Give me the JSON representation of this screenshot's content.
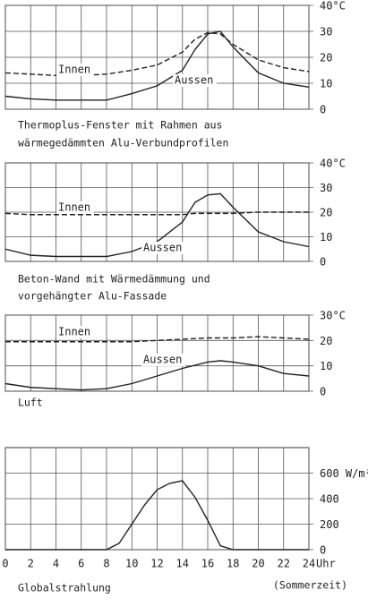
{
  "chart_data": [
    {
      "type": "line",
      "ylim": [
        0,
        40
      ],
      "yticks": [
        0,
        10,
        20,
        30,
        {
          "value": 40,
          "label": "40°C"
        }
      ],
      "x": [
        0,
        2,
        4,
        6,
        8,
        10,
        12,
        14,
        15,
        16,
        17,
        18,
        20,
        22,
        24
      ],
      "series": [
        {
          "name": "Innen",
          "color": "#222",
          "dash": true,
          "values": [
            14,
            13.5,
            13,
            13,
            13.5,
            15,
            17,
            22,
            27,
            29.5,
            29,
            25,
            19,
            16,
            14.5
          ]
        },
        {
          "name": "Aussen",
          "color": "#222",
          "dash": false,
          "values": [
            5,
            4,
            3.5,
            3.5,
            3.5,
            6,
            9,
            15,
            23,
            29,
            30,
            24,
            14,
            10,
            8.5
          ]
        }
      ],
      "caption": [
        "Thermoplus-Fenster mit Rahmen aus",
        "wärmegedämmten Alu-Verbundprofilen"
      ]
    },
    {
      "type": "line",
      "ylim": [
        0,
        40
      ],
      "yticks": [
        0,
        10,
        20,
        30,
        {
          "value": 40,
          "label": "40°C"
        }
      ],
      "x": [
        0,
        2,
        4,
        6,
        8,
        10,
        12,
        14,
        15,
        16,
        17,
        18,
        20,
        22,
        24
      ],
      "series": [
        {
          "name": "Innen",
          "color": "#222",
          "dash": true,
          "values": [
            19.5,
            19,
            19,
            19,
            19,
            19,
            19,
            19,
            19.5,
            19.5,
            19.5,
            19.5,
            20,
            20,
            20
          ]
        },
        {
          "name": "Aussen",
          "color": "#222",
          "dash": false,
          "values": [
            5,
            2.5,
            2,
            2,
            2,
            4,
            8,
            16,
            24,
            27,
            27.5,
            22,
            12,
            8,
            6
          ]
        }
      ],
      "caption": [
        "Beton-Wand mit Wärmedämmung und",
        "vorgehängter Alu-Fassade"
      ]
    },
    {
      "type": "line",
      "ylim": [
        0,
        30
      ],
      "yticks": [
        0,
        10,
        20,
        {
          "value": 30,
          "label": "30°C"
        }
      ],
      "x": [
        0,
        2,
        4,
        6,
        8,
        10,
        12,
        14,
        16,
        17,
        18,
        20,
        22,
        24
      ],
      "series": [
        {
          "name": "Innen",
          "color": "#222",
          "dash": true,
          "values": [
            19.5,
            19.5,
            19.5,
            19.5,
            19.5,
            19.5,
            20,
            20.5,
            21,
            21,
            21,
            21.5,
            21,
            20.5
          ]
        },
        {
          "name": "Aussen",
          "color": "#222",
          "dash": false,
          "values": [
            3,
            1.5,
            1,
            0.5,
            1,
            3,
            6,
            9,
            11.5,
            12,
            11.5,
            10,
            7,
            6
          ]
        }
      ],
      "caption": [
        "Luft"
      ]
    },
    {
      "type": "line",
      "ylim": [
        0,
        800
      ],
      "yticks": [
        0,
        200,
        400,
        {
          "value": 600,
          "label": "600 W/m²"
        }
      ],
      "x": [
        0,
        2,
        4,
        6,
        8,
        9,
        10,
        11,
        12,
        13,
        14,
        15,
        16,
        17,
        18,
        20,
        22,
        24
      ],
      "xticks": [
        0,
        2,
        4,
        6,
        8,
        10,
        12,
        14,
        16,
        18,
        20,
        22,
        24
      ],
      "xlabel": "Uhr",
      "series": [
        {
          "color": "#222",
          "dash": false,
          "values": [
            0,
            0,
            0,
            0,
            0,
            50,
            200,
            350,
            470,
            520,
            540,
            410,
            230,
            30,
            0,
            0,
            0,
            0
          ]
        }
      ],
      "caption": [
        "Globalstrahlung"
      ],
      "note": "(Sommerzeit)"
    }
  ]
}
